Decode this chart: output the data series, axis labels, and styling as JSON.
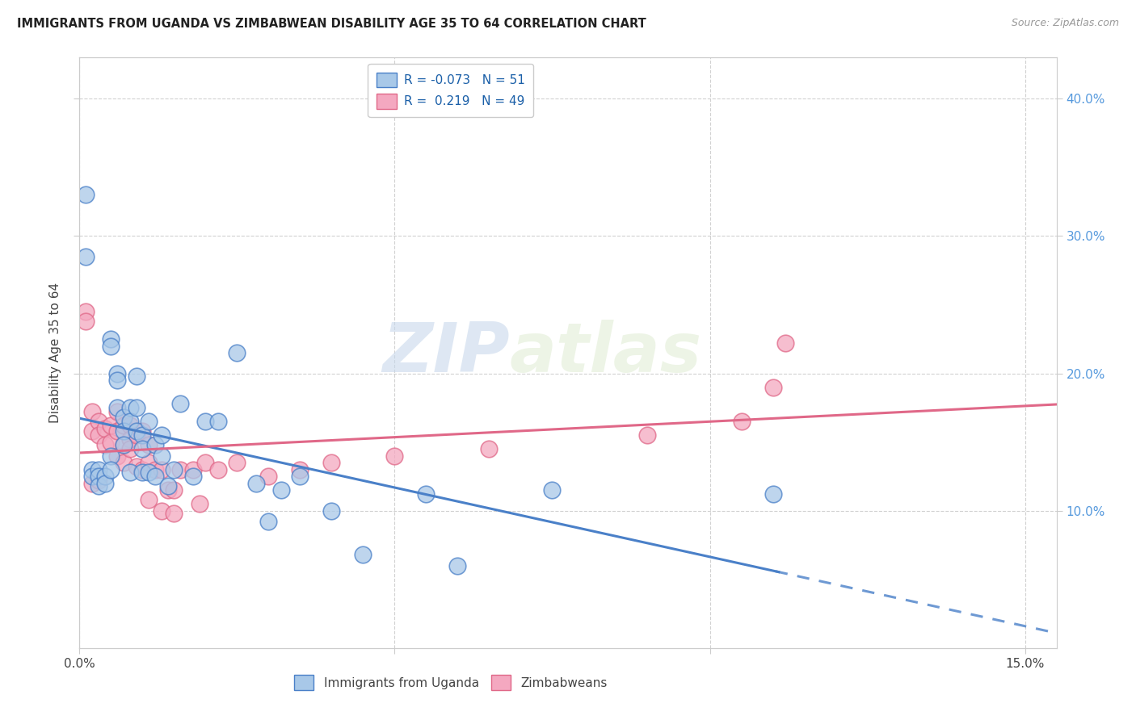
{
  "title": "IMMIGRANTS FROM UGANDA VS ZIMBABWEAN DISABILITY AGE 35 TO 64 CORRELATION CHART",
  "source": "Source: ZipAtlas.com",
  "ylabel_label": "Disability Age 35 to 64",
  "xlim": [
    0.0,
    0.155
  ],
  "ylim": [
    0.0,
    0.43
  ],
  "legend_r_uganda": "-0.073",
  "legend_n_uganda": "51",
  "legend_r_zimbabwe": "0.219",
  "legend_n_zimbabwe": "49",
  "uganda_color": "#a8c8e8",
  "zimbabwe_color": "#f4a8c0",
  "uganda_line_color": "#4a80c8",
  "zimbabwe_line_color": "#e06888",
  "watermark_zip": "ZIP",
  "watermark_atlas": "atlas",
  "background_color": "#ffffff",
  "grid_color": "#cccccc",
  "uganda_x": [
    0.001,
    0.001,
    0.002,
    0.002,
    0.003,
    0.003,
    0.003,
    0.004,
    0.004,
    0.005,
    0.005,
    0.005,
    0.005,
    0.006,
    0.006,
    0.006,
    0.007,
    0.007,
    0.007,
    0.008,
    0.008,
    0.008,
    0.009,
    0.009,
    0.009,
    0.01,
    0.01,
    0.01,
    0.011,
    0.011,
    0.012,
    0.012,
    0.013,
    0.013,
    0.014,
    0.015,
    0.016,
    0.018,
    0.02,
    0.022,
    0.025,
    0.028,
    0.03,
    0.032,
    0.035,
    0.04,
    0.045,
    0.055,
    0.06,
    0.075,
    0.11
  ],
  "uganda_y": [
    0.33,
    0.285,
    0.13,
    0.125,
    0.13,
    0.125,
    0.118,
    0.125,
    0.12,
    0.225,
    0.22,
    0.14,
    0.13,
    0.2,
    0.195,
    0.175,
    0.168,
    0.158,
    0.148,
    0.175,
    0.165,
    0.128,
    0.198,
    0.175,
    0.158,
    0.155,
    0.145,
    0.128,
    0.165,
    0.128,
    0.148,
    0.125,
    0.155,
    0.14,
    0.118,
    0.13,
    0.178,
    0.125,
    0.165,
    0.165,
    0.215,
    0.12,
    0.092,
    0.115,
    0.125,
    0.1,
    0.068,
    0.112,
    0.06,
    0.115,
    0.112
  ],
  "zimbabwe_x": [
    0.001,
    0.001,
    0.002,
    0.002,
    0.002,
    0.003,
    0.003,
    0.003,
    0.004,
    0.004,
    0.005,
    0.005,
    0.006,
    0.006,
    0.006,
    0.007,
    0.007,
    0.007,
    0.008,
    0.008,
    0.008,
    0.009,
    0.009,
    0.01,
    0.01,
    0.011,
    0.011,
    0.011,
    0.012,
    0.013,
    0.013,
    0.014,
    0.015,
    0.015,
    0.016,
    0.018,
    0.019,
    0.02,
    0.022,
    0.025,
    0.03,
    0.035,
    0.04,
    0.05,
    0.065,
    0.09,
    0.105,
    0.11,
    0.112
  ],
  "zimbabwe_y": [
    0.245,
    0.238,
    0.172,
    0.158,
    0.12,
    0.165,
    0.155,
    0.122,
    0.16,
    0.148,
    0.162,
    0.15,
    0.172,
    0.158,
    0.14,
    0.162,
    0.148,
    0.135,
    0.162,
    0.152,
    0.145,
    0.155,
    0.132,
    0.158,
    0.13,
    0.148,
    0.135,
    0.108,
    0.13,
    0.13,
    0.1,
    0.115,
    0.115,
    0.098,
    0.13,
    0.13,
    0.105,
    0.135,
    0.13,
    0.135,
    0.125,
    0.13,
    0.135,
    0.14,
    0.145,
    0.155,
    0.165,
    0.19,
    0.222
  ]
}
